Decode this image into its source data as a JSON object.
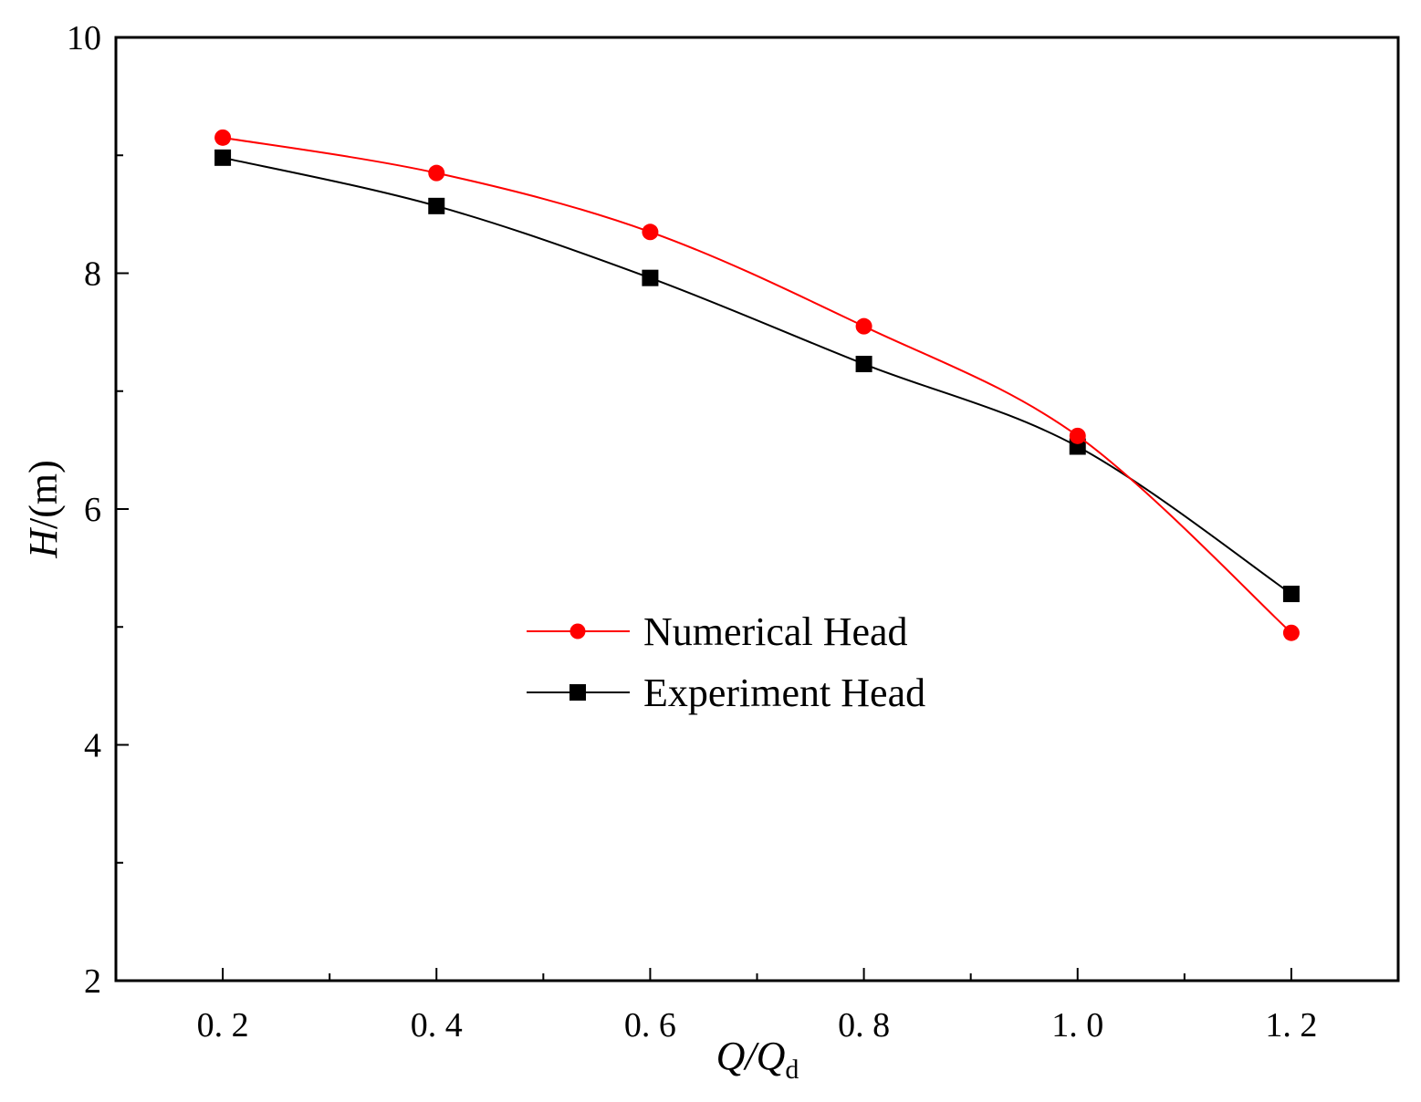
{
  "chart_data": {
    "type": "line",
    "title": "",
    "xlabel": {
      "main": "Q/Q",
      "sub": "d"
    },
    "ylabel": {
      "italic": "H",
      "rest": "/(m)"
    },
    "xlim": [
      0.1,
      1.3
    ],
    "ylim": [
      2,
      10
    ],
    "x_ticks": [
      0.2,
      0.4,
      0.6,
      0.8,
      1.0,
      1.2
    ],
    "x_tick_labels": [
      "0. 2",
      "0. 4",
      "0. 6",
      "0. 8",
      "1. 0",
      "1. 2"
    ],
    "x_minor_ticks": [
      0.3,
      0.5,
      0.7,
      0.9,
      1.1
    ],
    "y_ticks": [
      2,
      4,
      6,
      8,
      10
    ],
    "y_tick_labels": [
      "2",
      "4",
      "6",
      "8",
      "10"
    ],
    "y_minor_ticks": [
      3,
      5,
      7,
      9
    ],
    "grid": false,
    "legend_position": "center-right",
    "series": [
      {
        "name": "Numerical Head",
        "color": "#ff0000",
        "marker": "circle",
        "x": [
          0.2,
          0.4,
          0.6,
          0.8,
          1.0,
          1.2
        ],
        "values": [
          9.15,
          8.85,
          8.35,
          7.55,
          6.62,
          4.95
        ]
      },
      {
        "name": "Experiment Head",
        "color": "#000000",
        "marker": "square",
        "x": [
          0.2,
          0.4,
          0.6,
          0.8,
          1.0,
          1.2
        ],
        "values": [
          8.98,
          8.57,
          7.96,
          7.23,
          6.53,
          5.28
        ]
      }
    ]
  }
}
